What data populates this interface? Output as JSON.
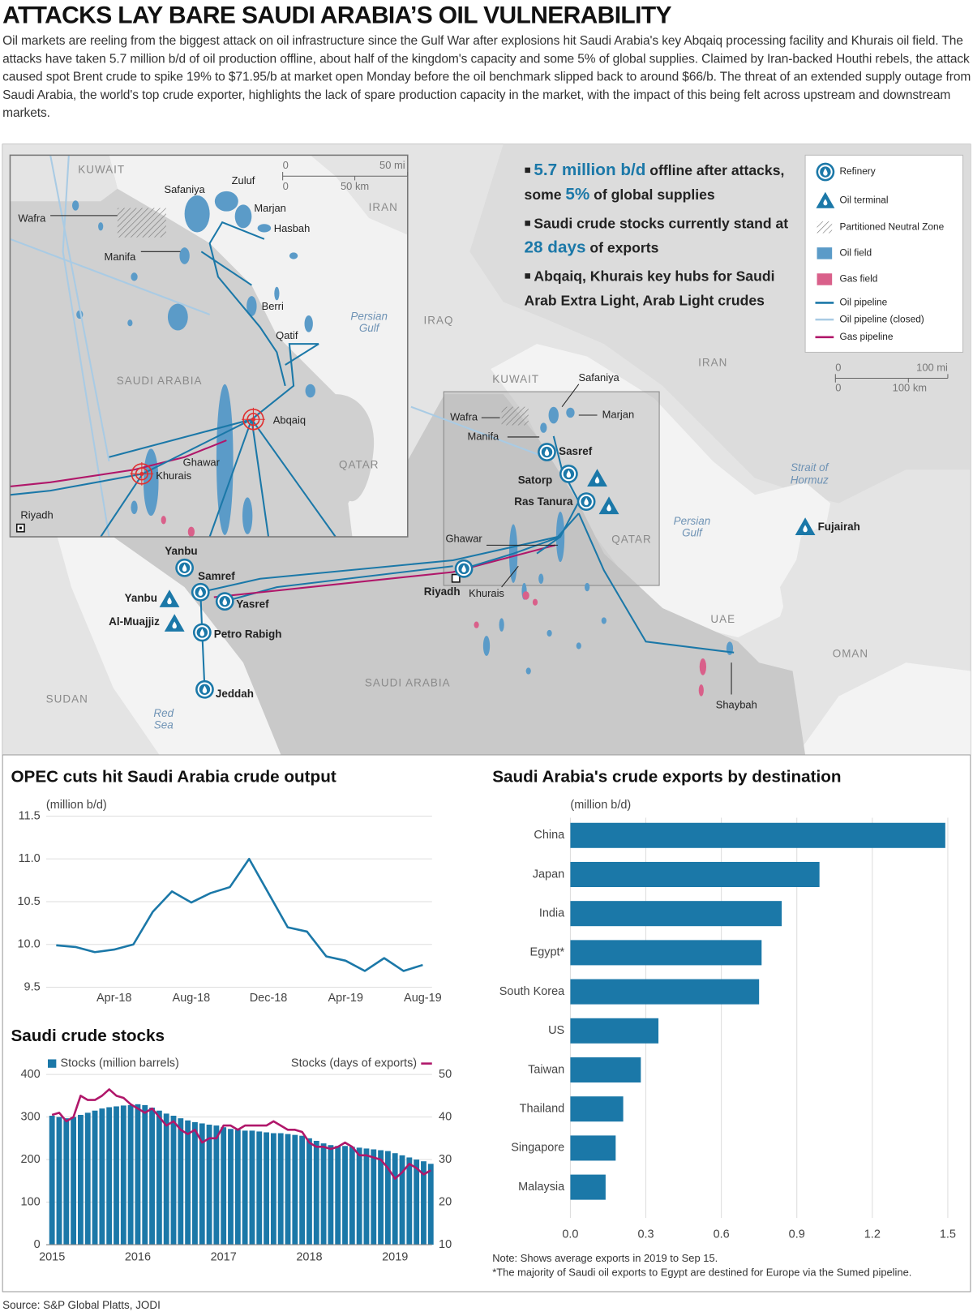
{
  "header": {
    "title": "ATTACKS LAY BARE SAUDI ARABIA’S OIL VULNERABILITY",
    "intro": "Oil markets are reeling from the biggest attack on oil infrastructure since the Gulf War after explosions hit Saudi Arabia's key Abqaiq processing facility and Khurais oil field. The attacks have taken 5.7 million b/d of oil production offline, about half of the kingdom's capacity and some 5% of global supplies. Claimed by Iran-backed Houthi rebels, the attack caused spot Brent crude to spike 19% to $71.95/b at market open Monday before the oil benchmark slipped back to around $66/b. The threat of an extended supply outage from Saudi Arabia, the world's top crude exporter, highlights the lack of spare production capacity in the market, with the impact of this being felt across upstream and downstream markets."
  },
  "map": {
    "callouts": [
      [
        "5.7 million b/d",
        " offline after attacks, some ",
        "5%",
        " of global supplies"
      ],
      [
        "Saudi crude stocks currently stand at ",
        "28 days",
        " of exports"
      ],
      [
        "Abqaiq, Khurais key hubs for Saudi Arab Extra Light, Arab Light crudes"
      ]
    ],
    "legend": [
      "Refinery",
      "Oil terminal",
      "Partitioned Neutral Zone",
      "Oil field",
      "Gas field",
      "Oil pipeline",
      "Oil pipeline (closed)",
      "Gas pipeline"
    ],
    "inset_labels": [
      "KUWAIT",
      "Safaniya",
      "Zuluf",
      "Marjan",
      "Hasbah",
      "Wafra",
      "Manifa",
      "Berri",
      "Qatif",
      "Persian",
      "Gulf",
      "SAUDI ARABIA",
      "Abqaiq",
      "Ghawar",
      "Khurais",
      "QATAR",
      "Riyadh",
      "IRAN"
    ],
    "inset_scale": [
      "0",
      "50 mi",
      "0",
      "50 km"
    ],
    "labels": [
      "IRAQ",
      "IRAN",
      "KUWAIT",
      "Safaniya",
      "Marjan",
      "Wafra",
      "Manifa",
      "Sasref",
      "Satorp",
      "Ras Tanura",
      "QATAR",
      "Ghawar",
      "Riyadh",
      "Khurais",
      "Strait of",
      "Hormuz",
      "Persian",
      "Gulf",
      "Fujairah",
      "UAE",
      "OMAN",
      "Shaybah",
      "SAUDI ARABIA",
      "SUDAN",
      "Red",
      "Sea",
      "Yanbu",
      "Samref",
      "Yanbu",
      "Yasref",
      "Al-Muajjiz",
      "Petro Rabigh",
      "Jeddah"
    ],
    "scale": [
      "0",
      "100 mi",
      "0",
      "100 km"
    ]
  },
  "chart_data": [
    {
      "type": "line",
      "title": "OPEC cuts hit Saudi Arabia crude output",
      "y_label": "(million b/d)",
      "categories": [
        null,
        null,
        null,
        "Apr-18",
        null,
        null,
        null,
        "Aug-18",
        null,
        null,
        null,
        "Dec-18",
        null,
        null,
        null,
        "Apr-19",
        null,
        null,
        null,
        "Aug-19"
      ],
      "values": [
        9.99,
        9.97,
        9.91,
        9.94,
        10.0,
        10.38,
        10.62,
        10.49,
        10.6,
        10.67,
        11.0,
        10.6,
        10.2,
        10.15,
        9.86,
        9.81,
        9.69,
        9.84,
        9.69,
        9.76
      ],
      "color": "#1b78a8",
      "ylim": [
        9.5,
        11.5
      ],
      "yticks": [
        9.5,
        {
          "value": 10,
          "label": "10.0"
        },
        10.5,
        {
          "value": 11,
          "label": "11.0"
        },
        11.5
      ],
      "grid": true
    },
    {
      "type": "bar",
      "title": "Saudi crude stocks",
      "categories": [
        "2015",
        null,
        null,
        null,
        null,
        null,
        null,
        null,
        null,
        null,
        null,
        null,
        "2016",
        null,
        null,
        null,
        null,
        null,
        null,
        null,
        null,
        null,
        null,
        null,
        "2017",
        null,
        null,
        null,
        null,
        null,
        null,
        null,
        null,
        null,
        null,
        null,
        "2018",
        null,
        null,
        null,
        null,
        null,
        null,
        null,
        null,
        null,
        null,
        null,
        "2019",
        null,
        null,
        null,
        null,
        null
      ],
      "series": [
        {
          "name": "Stocks (million barrels)",
          "color": "#1b78a8",
          "values": [
            303,
            300,
            297,
            300,
            305,
            310,
            315,
            320,
            323,
            325,
            327,
            328,
            330,
            328,
            322,
            315,
            308,
            303,
            297,
            292,
            288,
            285,
            282,
            280,
            276,
            272,
            270,
            268,
            268,
            266,
            264,
            262,
            262,
            260,
            258,
            256,
            250,
            244,
            238,
            234,
            232,
            232,
            230,
            228,
            226,
            224,
            222,
            220,
            215,
            210,
            205,
            200,
            196,
            190
          ]
        },
        {
          "name": "Stocks (days of exports)",
          "color": "#b0176a",
          "type": "line",
          "axis": "y2",
          "values": [
            40.5,
            41,
            39,
            40,
            45,
            44,
            44,
            45,
            46.5,
            45,
            44.5,
            43,
            42,
            41,
            42,
            40,
            38,
            39,
            37,
            36,
            37,
            34,
            35,
            35,
            38,
            38,
            37,
            38,
            38,
            38,
            38,
            39,
            38,
            37,
            37,
            36.5,
            34,
            33,
            33,
            32.5,
            33,
            34,
            33,
            31,
            31,
            30.5,
            30,
            28,
            25.5,
            27,
            29,
            28,
            26.5,
            27.5
          ]
        }
      ],
      "ylim": [
        0,
        400
      ],
      "yticks": [
        0,
        100,
        200,
        300,
        400
      ],
      "y2lim": [
        10,
        50
      ],
      "y2ticks": [
        10,
        20,
        30,
        40,
        50
      ],
      "grid": true
    },
    {
      "type": "bar",
      "orientation": "horizontal",
      "title": "Saudi Arabia's crude exports by destination",
      "x_label": "(million b/d)",
      "categories": [
        "China",
        "Japan",
        "India",
        "Egypt*",
        "South Korea",
        "US",
        "Taiwan",
        "Thailand",
        "Singapore",
        "Malaysia"
      ],
      "values": [
        1.49,
        0.99,
        0.84,
        0.76,
        0.75,
        0.35,
        0.28,
        0.21,
        0.18,
        0.14
      ],
      "color": "#1b78a8",
      "xlim": [
        0,
        1.5
      ],
      "xticks": [
        {
          "value": 0,
          "label": "0.0"
        },
        0.3,
        0.6,
        0.9,
        1.2,
        1.5
      ],
      "grid": true,
      "notes": [
        "Note: Shows average exports in 2019 to Sep 15.",
        "*The majority of Saudi oil exports to Egypt are destined for Europe via the Sumed pipeline."
      ]
    }
  ],
  "source": "Source: S&P Global Platts, JODI"
}
